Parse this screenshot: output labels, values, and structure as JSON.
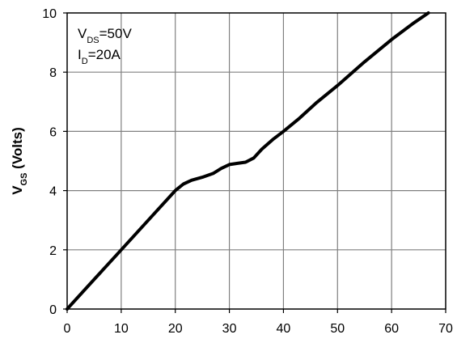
{
  "chart_data": {
    "type": "line",
    "title": "",
    "xlabel": "",
    "ylabel": {
      "main": "V",
      "sub": "GS",
      "rest": " (Volts)"
    },
    "xlim": [
      0,
      70
    ],
    "ylim": [
      0,
      10
    ],
    "xticks": [
      0,
      10,
      20,
      30,
      40,
      50,
      60,
      70
    ],
    "yticks": [
      0,
      2,
      4,
      6,
      8,
      10
    ],
    "grid": true,
    "legend": "none",
    "annotations": [
      {
        "main": "V",
        "sub": "DS",
        "rest": "=50V"
      },
      {
        "main": "I",
        "sub": "D",
        "rest": "=20A"
      }
    ],
    "series": [
      {
        "color": "#000000",
        "x": [
          0,
          5,
          10,
          15,
          20,
          21.5,
          23,
          25,
          27,
          28.5,
          30,
          31.5,
          33,
          34.5,
          36,
          38,
          40,
          43,
          46,
          50,
          55,
          60,
          64,
          66.8
        ],
        "y": [
          0,
          1.0,
          2.0,
          3.0,
          4.0,
          4.22,
          4.35,
          4.45,
          4.58,
          4.75,
          4.88,
          4.92,
          4.96,
          5.1,
          5.4,
          5.72,
          6.0,
          6.45,
          6.95,
          7.55,
          8.35,
          9.1,
          9.65,
          10.0
        ]
      }
    ],
    "colors": {
      "line": "#000000",
      "grid": "#808080",
      "axis": "#000000"
    }
  }
}
